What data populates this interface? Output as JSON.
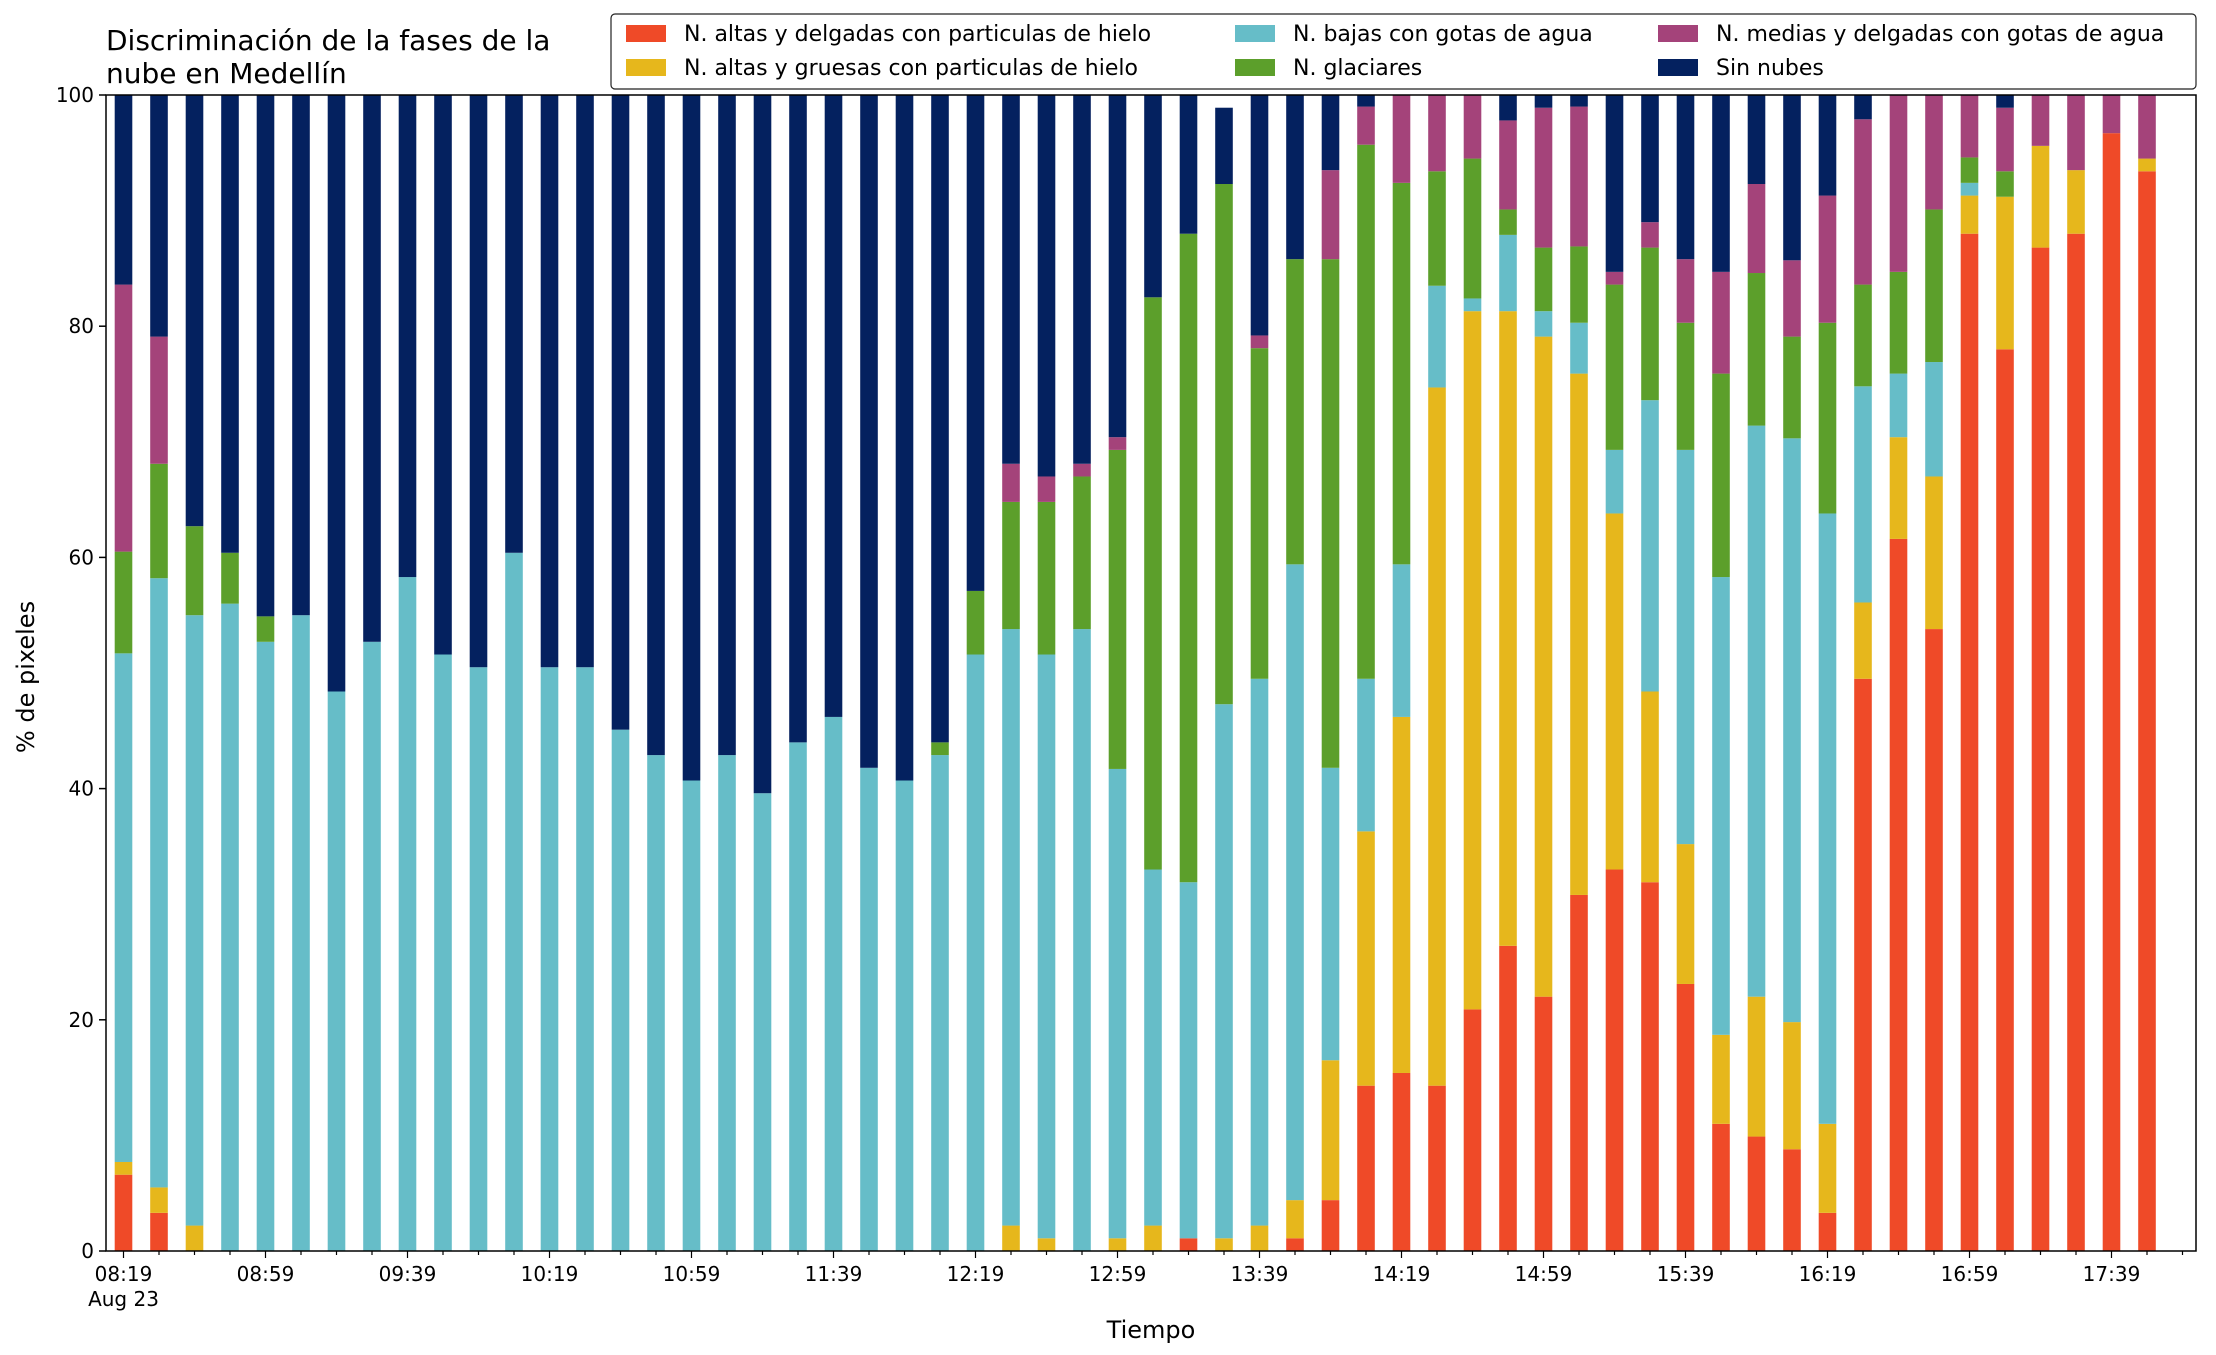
{
  "chart_data": {
    "type": "bar",
    "stacked": true,
    "title_lines": [
      "Discriminación de la fases de la",
      "nube en Medellín"
    ],
    "xlabel": "Tiempo",
    "ylabel": "% de pixeles",
    "ylim": [
      0,
      100
    ],
    "yticks": [
      0,
      20,
      40,
      60,
      80,
      100
    ],
    "grid": false,
    "legend_position": "top-right",
    "x_date_label": "Aug 23",
    "xtick_labels": [
      "08:19",
      "08:59",
      "09:39",
      "10:19",
      "10:59",
      "11:39",
      "12:19",
      "12:59",
      "13:39",
      "14:19",
      "14:59",
      "15:39",
      "16:19",
      "16:59",
      "17:39"
    ],
    "categories": [
      "08:19",
      "08:29",
      "08:39",
      "08:49",
      "08:59",
      "09:09",
      "09:19",
      "09:29",
      "09:39",
      "09:49",
      "09:59",
      "10:09",
      "10:19",
      "10:29",
      "10:39",
      "10:49",
      "10:59",
      "11:09",
      "11:19",
      "11:29",
      "11:39",
      "11:49",
      "11:59",
      "12:09",
      "12:19",
      "12:29",
      "12:39",
      "12:49",
      "12:59",
      "13:09",
      "13:19",
      "13:29",
      "13:39",
      "13:49",
      "13:59",
      "14:09",
      "14:19",
      "14:29",
      "14:39",
      "14:49",
      "14:59",
      "15:09",
      "15:19",
      "15:29",
      "15:39",
      "15:49",
      "15:59",
      "16:09",
      "16:19",
      "16:29",
      "16:39",
      "16:49",
      "16:59",
      "17:09",
      "17:19",
      "17:29",
      "17:39",
      "17:49"
    ],
    "series": [
      {
        "name": "N. altas y delgadas con particulas de hielo",
        "color": "#ef4a28",
        "values": [
          6.6,
          3.3,
          0,
          0,
          0,
          0,
          0,
          0,
          0,
          0,
          0,
          0,
          0,
          0,
          0,
          0,
          0,
          0,
          0,
          0,
          0,
          0,
          0,
          0,
          0,
          0,
          0,
          0,
          0,
          0,
          1.1,
          0,
          0,
          1.1,
          4.4,
          14.3,
          15.4,
          14.3,
          20.9,
          26.4,
          22.0,
          30.8,
          33.0,
          31.9,
          23.1,
          11.0,
          9.9,
          8.8,
          3.3,
          49.5,
          61.6,
          53.8,
          88.0,
          78.0,
          86.8,
          88.0,
          96.7,
          93.4
        ]
      },
      {
        "name": "N. altas y gruesas con particulas de hielo",
        "color": "#e6b71c",
        "values": [
          1.1,
          2.2,
          2.2,
          0,
          0,
          0,
          0,
          0,
          0,
          0,
          0,
          0,
          0,
          0,
          0,
          0,
          0,
          0,
          0,
          0,
          0,
          0,
          0,
          0,
          0,
          2.2,
          1.1,
          0,
          1.1,
          2.2,
          0,
          1.1,
          2.2,
          3.3,
          12.1,
          22.0,
          30.8,
          60.4,
          60.4,
          54.9,
          57.1,
          45.1,
          30.8,
          16.5,
          12.1,
          7.7,
          12.1,
          11.0,
          7.7,
          6.6,
          8.8,
          13.2,
          3.3,
          13.2,
          8.8,
          5.5,
          0,
          1.1
        ]
      },
      {
        "name": "N. bajas con gotas de agua",
        "color": "#66bdc8",
        "values": [
          44.0,
          52.7,
          52.8,
          56.0,
          52.7,
          55.0,
          48.4,
          52.7,
          58.3,
          51.6,
          50.5,
          60.4,
          50.5,
          50.5,
          45.1,
          42.9,
          40.7,
          42.9,
          39.6,
          44.0,
          46.2,
          41.8,
          40.7,
          42.9,
          51.6,
          51.6,
          50.5,
          53.8,
          40.6,
          30.8,
          30.8,
          46.2,
          47.3,
          55.0,
          25.3,
          13.2,
          13.2,
          8.8,
          1.1,
          6.6,
          2.2,
          4.4,
          5.5,
          25.2,
          34.1,
          39.6,
          49.4,
          50.5,
          52.8,
          18.7,
          5.5,
          9.9,
          1.1,
          0,
          0,
          0,
          0,
          0
        ]
      },
      {
        "name": "N. glaciares",
        "color": "#5c9f2b",
        "values": [
          8.8,
          9.9,
          7.7,
          4.4,
          2.2,
          0,
          0,
          0,
          0,
          0,
          0,
          0,
          0,
          0,
          0,
          0,
          0,
          0,
          0,
          0,
          0,
          0,
          0,
          1.1,
          5.5,
          11.0,
          13.2,
          13.2,
          27.6,
          49.5,
          56.1,
          45.0,
          28.6,
          26.4,
          44.0,
          46.2,
          33.0,
          9.9,
          12.1,
          2.2,
          5.5,
          6.6,
          14.3,
          13.2,
          11.0,
          17.6,
          13.2,
          8.8,
          16.5,
          8.8,
          8.8,
          13.2,
          2.2,
          2.2,
          0,
          0,
          0,
          0
        ]
      },
      {
        "name": "N. medias y delgadas con gotas de agua",
        "color": "#a4437a",
        "values": [
          23.1,
          11.0,
          0,
          0,
          0,
          0,
          0,
          0,
          0,
          0,
          0,
          0,
          0,
          0,
          0,
          0,
          0,
          0,
          0,
          0,
          0,
          0,
          0,
          0,
          0,
          3.3,
          2.2,
          1.1,
          1.1,
          0,
          0,
          0,
          1.1,
          0,
          7.7,
          3.3,
          7.7,
          6.6,
          5.5,
          7.7,
          12.1,
          12.1,
          1.1,
          2.2,
          5.5,
          8.8,
          7.7,
          6.6,
          11.0,
          14.3,
          15.4,
          9.9,
          5.5,
          5.5,
          4.4,
          6.6,
          3.3,
          5.5
        ]
      },
      {
        "name": "Sin nubes",
        "color": "#04215f",
        "values": [
          16.4,
          20.9,
          37.3,
          39.6,
          45.1,
          45.0,
          51.6,
          47.3,
          41.7,
          48.4,
          49.5,
          39.6,
          49.5,
          49.5,
          54.9,
          57.1,
          59.3,
          57.1,
          60.4,
          56.0,
          53.8,
          58.2,
          59.3,
          56.0,
          42.9,
          31.9,
          33.0,
          31.9,
          29.7,
          17.5,
          12.0,
          6.6,
          21.9,
          14.2,
          6.5,
          1.0,
          0,
          0,
          0,
          2.2,
          6.6,
          1.1,
          15.3,
          11.0,
          14.2,
          15.3,
          7.7,
          14.3,
          8.7,
          2.1,
          0,
          0,
          0,
          1.1,
          0,
          0,
          0,
          0
        ]
      }
    ]
  }
}
